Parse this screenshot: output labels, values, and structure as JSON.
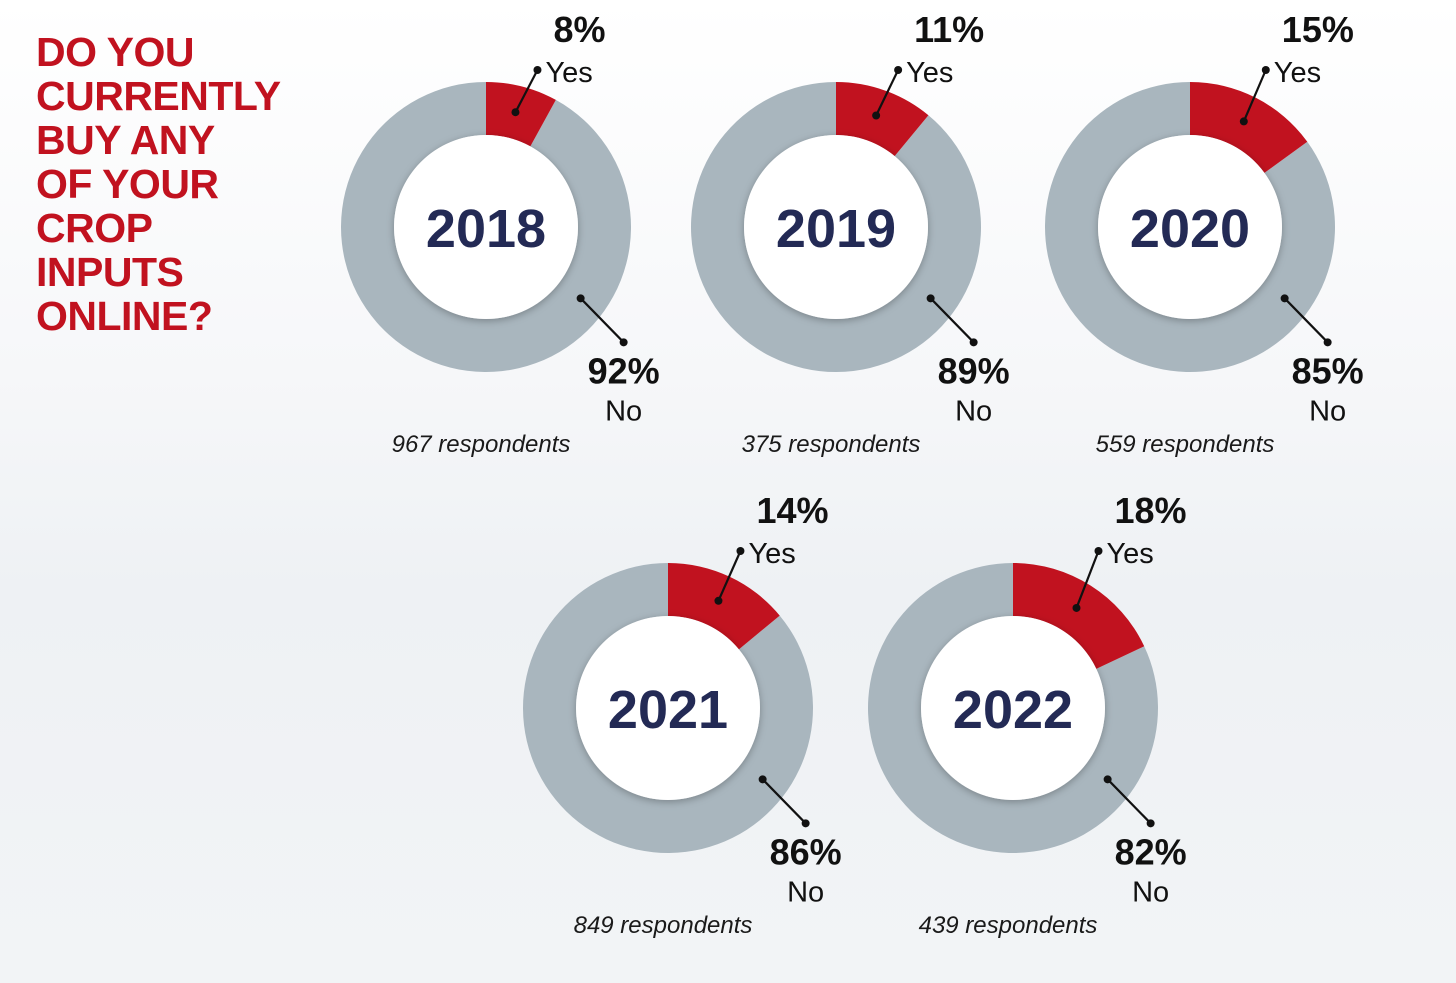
{
  "chart_data": {
    "type": "pie",
    "variant": "donut",
    "title": "DO YOU\nCURRENTLY\nBUY ANY\nOF YOUR\nCROP\nINPUTS\nONLINE?",
    "colors": {
      "yes": "#c1121f",
      "no": "#a9b6be",
      "center_fill": "#ffffff",
      "year_text": "#232a55",
      "title": "#c1121f",
      "label_text": "#111111"
    },
    "charts": [
      {
        "year": "2018",
        "respondents": "967 respondents",
        "slices": [
          {
            "name": "Yes",
            "value": 8,
            "label": "8%"
          },
          {
            "name": "No",
            "value": 92,
            "label": "92%"
          }
        ]
      },
      {
        "year": "2019",
        "respondents": "375 respondents",
        "slices": [
          {
            "name": "Yes",
            "value": 11,
            "label": "11%"
          },
          {
            "name": "No",
            "value": 89,
            "label": "89%"
          }
        ]
      },
      {
        "year": "2020",
        "respondents": "559 respondents",
        "slices": [
          {
            "name": "Yes",
            "value": 15,
            "label": "15%"
          },
          {
            "name": "No",
            "value": 85,
            "label": "85%"
          }
        ]
      },
      {
        "year": "2021",
        "respondents": "849 respondents",
        "slices": [
          {
            "name": "Yes",
            "value": 14,
            "label": "14%"
          },
          {
            "name": "No",
            "value": 86,
            "label": "86%"
          }
        ]
      },
      {
        "year": "2022",
        "respondents": "439 respondents",
        "slices": [
          {
            "name": "Yes",
            "value": 18,
            "label": "18%"
          },
          {
            "name": "No",
            "value": 82,
            "label": "82%"
          }
        ]
      }
    ]
  }
}
